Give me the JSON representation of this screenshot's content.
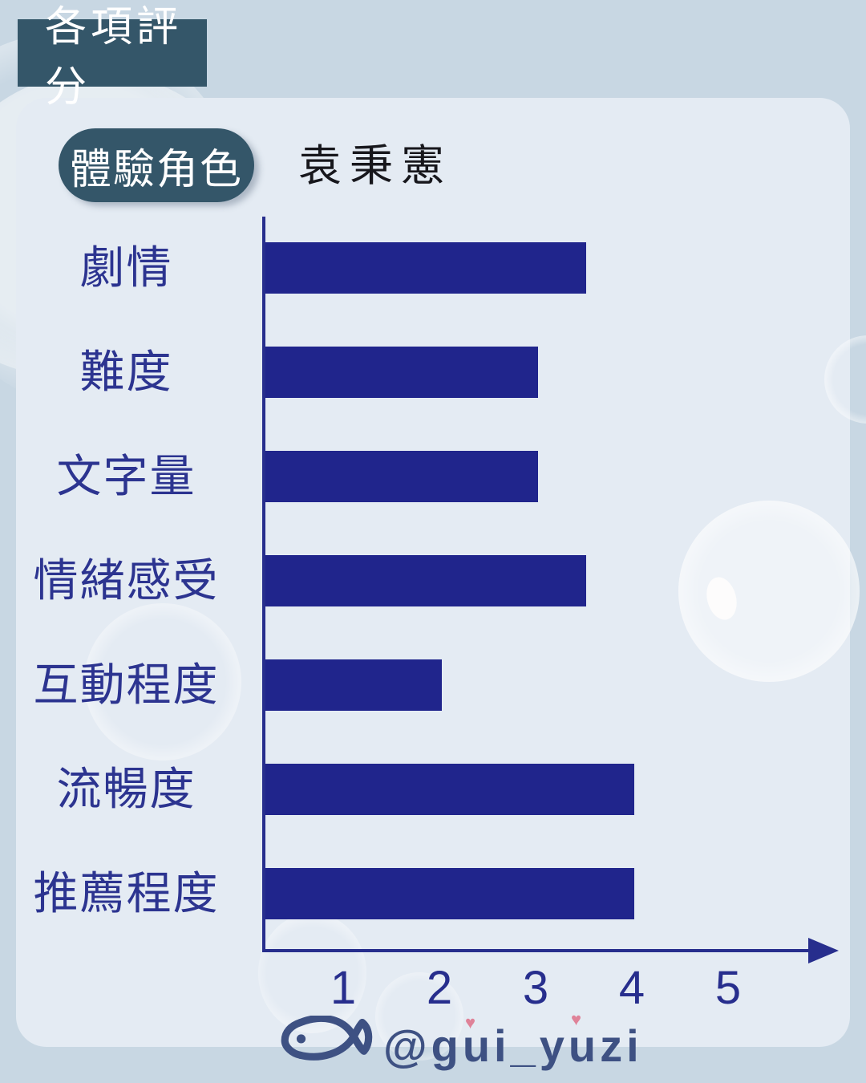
{
  "title_badge": "各項評分",
  "role": {
    "pill_label": "體驗角色",
    "name": "袁秉憲"
  },
  "chart_data": {
    "type": "bar",
    "orientation": "horizontal",
    "categories": [
      "劇情",
      "難度",
      "文字量",
      "情緒感受",
      "互動程度",
      "流暢度",
      "推薦程度"
    ],
    "values": [
      3.5,
      3,
      3,
      3.5,
      2,
      4,
      4
    ],
    "xticks": [
      "1",
      "2",
      "3",
      "4",
      "5"
    ],
    "xlim": [
      0,
      5.5
    ],
    "grid": false,
    "legend": "none",
    "bar_color": "#20258c",
    "axis_color": "#272e8d",
    "category_label_color": "#2c3490"
  },
  "watermark": {
    "fish_icon": "fish-icon",
    "handle": "@gui_yuzi",
    "heart": "♥",
    "handle_color": "#3e5183",
    "heart_color": "#df8298"
  },
  "colors": {
    "page_bg": "#c8d7e3",
    "panel_bg": "#e4ebf3",
    "badge_bg": "#345669",
    "badge_text": "#ffffff"
  }
}
